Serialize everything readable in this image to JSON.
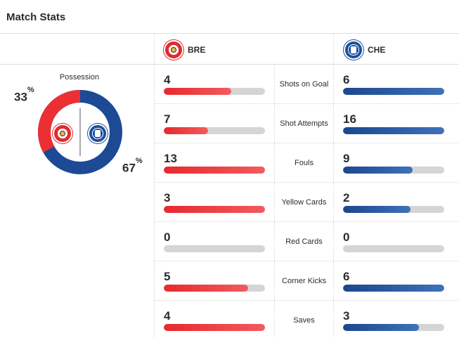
{
  "header": {
    "title": "Match Stats"
  },
  "teams": {
    "home": {
      "abbr": "BRE",
      "color": "#e32a2c",
      "crest": "brentford-crest"
    },
    "away": {
      "abbr": "CHE",
      "color": "#1d4f9c",
      "crest": "chelsea-crest"
    }
  },
  "possession": {
    "label": "Possession",
    "home_value": "33",
    "away_value": "67",
    "unit": "%",
    "home_fraction": 0.33,
    "away_fraction": 0.67
  },
  "stats": [
    {
      "label": "Shots on Goal",
      "home": "4",
      "away": "6",
      "home_fill": 0.67,
      "away_fill": 1.0
    },
    {
      "label": "Shot Attempts",
      "home": "7",
      "away": "16",
      "home_fill": 0.44,
      "away_fill": 1.0
    },
    {
      "label": "Fouls",
      "home": "13",
      "away": "9",
      "home_fill": 1.0,
      "away_fill": 0.69
    },
    {
      "label": "Yellow Cards",
      "home": "3",
      "away": "2",
      "home_fill": 1.0,
      "away_fill": 0.67
    },
    {
      "label": "Red Cards",
      "home": "0",
      "away": "0",
      "home_fill": 0.0,
      "away_fill": 0.0
    },
    {
      "label": "Corner Kicks",
      "home": "5",
      "away": "6",
      "home_fill": 0.83,
      "away_fill": 1.0
    },
    {
      "label": "Saves",
      "home": "4",
      "away": "3",
      "home_fill": 1.0,
      "away_fill": 0.75
    }
  ]
}
